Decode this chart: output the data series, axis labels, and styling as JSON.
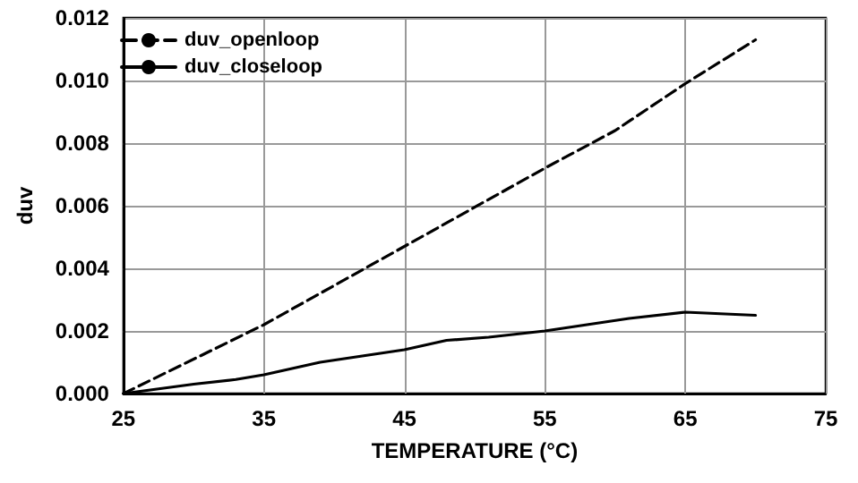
{
  "chart_data": {
    "type": "line",
    "xlabel": "TEMPERATURE (°C)",
    "ylabel": "duv",
    "series": [
      {
        "name": "duv_openloop",
        "color": "#000000",
        "line_style": "dashed",
        "x": [
          25,
          35,
          45,
          55,
          60,
          65,
          70
        ],
        "values": [
          0,
          0.0022,
          0.0047,
          0.0072,
          0.0084,
          0.0099,
          0.0113
        ]
      },
      {
        "name": "duv_closeloop",
        "color": "#000000",
        "line_style": "solid",
        "x": [
          25,
          27.5,
          30,
          33,
          35,
          37,
          39,
          42,
          45,
          48,
          51,
          55,
          58,
          61,
          65,
          70
        ],
        "values": [
          0,
          0.00015,
          0.0003,
          0.00045,
          0.0006,
          0.0008,
          0.001,
          0.0012,
          0.0014,
          0.0017,
          0.0018,
          0.002,
          0.0022,
          0.0024,
          0.0026,
          0.0025
        ]
      }
    ],
    "xlim": [
      25,
      75
    ],
    "xticks": [
      25,
      35,
      45,
      55,
      65,
      75
    ],
    "ylim": [
      0,
      0.012
    ],
    "yticks": [
      {
        "value": 0,
        "label": "0.000"
      },
      {
        "value": 0.002,
        "label": "0.002"
      },
      {
        "value": 0.004,
        "label": "0.004"
      },
      {
        "value": 0.006,
        "label": "0.006"
      },
      {
        "value": 0.008,
        "label": "0.008"
      },
      {
        "value": 0.01,
        "label": "0.010"
      },
      {
        "value": 0.012,
        "label": "0.012"
      }
    ],
    "grid": true,
    "legend": "top left",
    "marker": "none"
  }
}
